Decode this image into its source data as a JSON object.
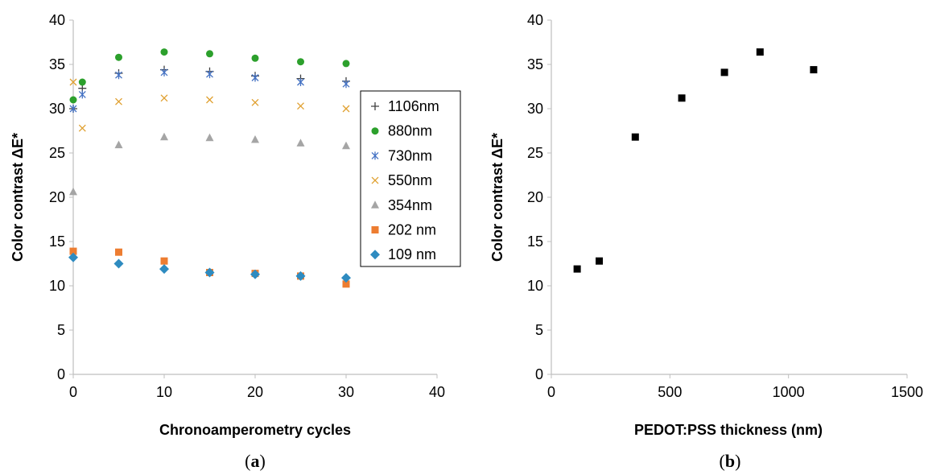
{
  "chart_data": [
    {
      "type": "scatter",
      "panel_label": "a",
      "xlabel": "Chronoamperometry cycles",
      "ylabel": "Color contrast ΔE*",
      "xlim": [
        0,
        40
      ],
      "ylim": [
        0,
        40
      ],
      "xticks": [
        0,
        10,
        20,
        30,
        40
      ],
      "yticks": [
        0,
        5,
        10,
        15,
        20,
        25,
        30,
        35,
        40
      ],
      "grid": false,
      "legend_position": "right",
      "series": [
        {
          "name": "1106nm",
          "marker": "plus",
          "color": "#404040",
          "x": [
            0,
            1,
            5,
            10,
            15,
            20,
            25,
            30
          ],
          "y": [
            30.0,
            32.3,
            34.0,
            34.4,
            34.2,
            33.7,
            33.4,
            33.1
          ]
        },
        {
          "name": "880nm",
          "marker": "circle",
          "color": "#2ca02c",
          "x": [
            0,
            1,
            5,
            10,
            15,
            20,
            25,
            30
          ],
          "y": [
            31.0,
            33.0,
            35.8,
            36.4,
            36.2,
            35.7,
            35.3,
            35.1
          ]
        },
        {
          "name": "730nm",
          "marker": "asterisk",
          "color": "#4472c4",
          "x": [
            0,
            1,
            5,
            10,
            15,
            20,
            25,
            30
          ],
          "y": [
            30.0,
            31.6,
            33.8,
            34.1,
            33.9,
            33.5,
            33.0,
            32.8
          ]
        },
        {
          "name": "550nm",
          "marker": "x",
          "color": "#e0a030",
          "x": [
            0,
            1,
            5,
            10,
            15,
            20,
            25,
            30
          ],
          "y": [
            33.0,
            27.8,
            30.8,
            31.2,
            31.0,
            30.7,
            30.3,
            30.0
          ]
        },
        {
          "name": "354nm",
          "marker": "triangle",
          "color": "#a5a5a5",
          "x": [
            0,
            5,
            10,
            15,
            20,
            25,
            30
          ],
          "y": [
            20.6,
            25.9,
            26.8,
            26.7,
            26.5,
            26.1,
            25.8
          ]
        },
        {
          "name": "202 nm",
          "marker": "square",
          "color": "#ed7d31",
          "x": [
            0,
            5,
            10,
            15,
            20,
            25,
            30
          ],
          "y": [
            13.9,
            13.8,
            12.8,
            11.5,
            11.4,
            11.1,
            10.2
          ]
        },
        {
          "name": "109 nm",
          "marker": "diamond",
          "color": "#2e8bc0",
          "x": [
            0,
            5,
            10,
            15,
            20,
            25,
            30
          ],
          "y": [
            13.2,
            12.5,
            11.9,
            11.5,
            11.3,
            11.1,
            10.9
          ]
        }
      ]
    },
    {
      "type": "scatter",
      "panel_label": "b",
      "xlabel": "PEDOT:PSS thickness (nm)",
      "ylabel": "Color contrast ΔE*",
      "xlim": [
        0,
        1500
      ],
      "ylim": [
        0,
        40
      ],
      "xticks": [
        0,
        500,
        1000,
        1500
      ],
      "yticks": [
        0,
        5,
        10,
        15,
        20,
        25,
        30,
        35,
        40
      ],
      "grid": false,
      "series": [
        {
          "marker": "square",
          "color": "#000000",
          "x": [
            109,
            202,
            354,
            550,
            730,
            880,
            1106
          ],
          "y": [
            11.9,
            12.8,
            26.8,
            31.2,
            34.1,
            36.4,
            34.4
          ]
        }
      ]
    }
  ]
}
